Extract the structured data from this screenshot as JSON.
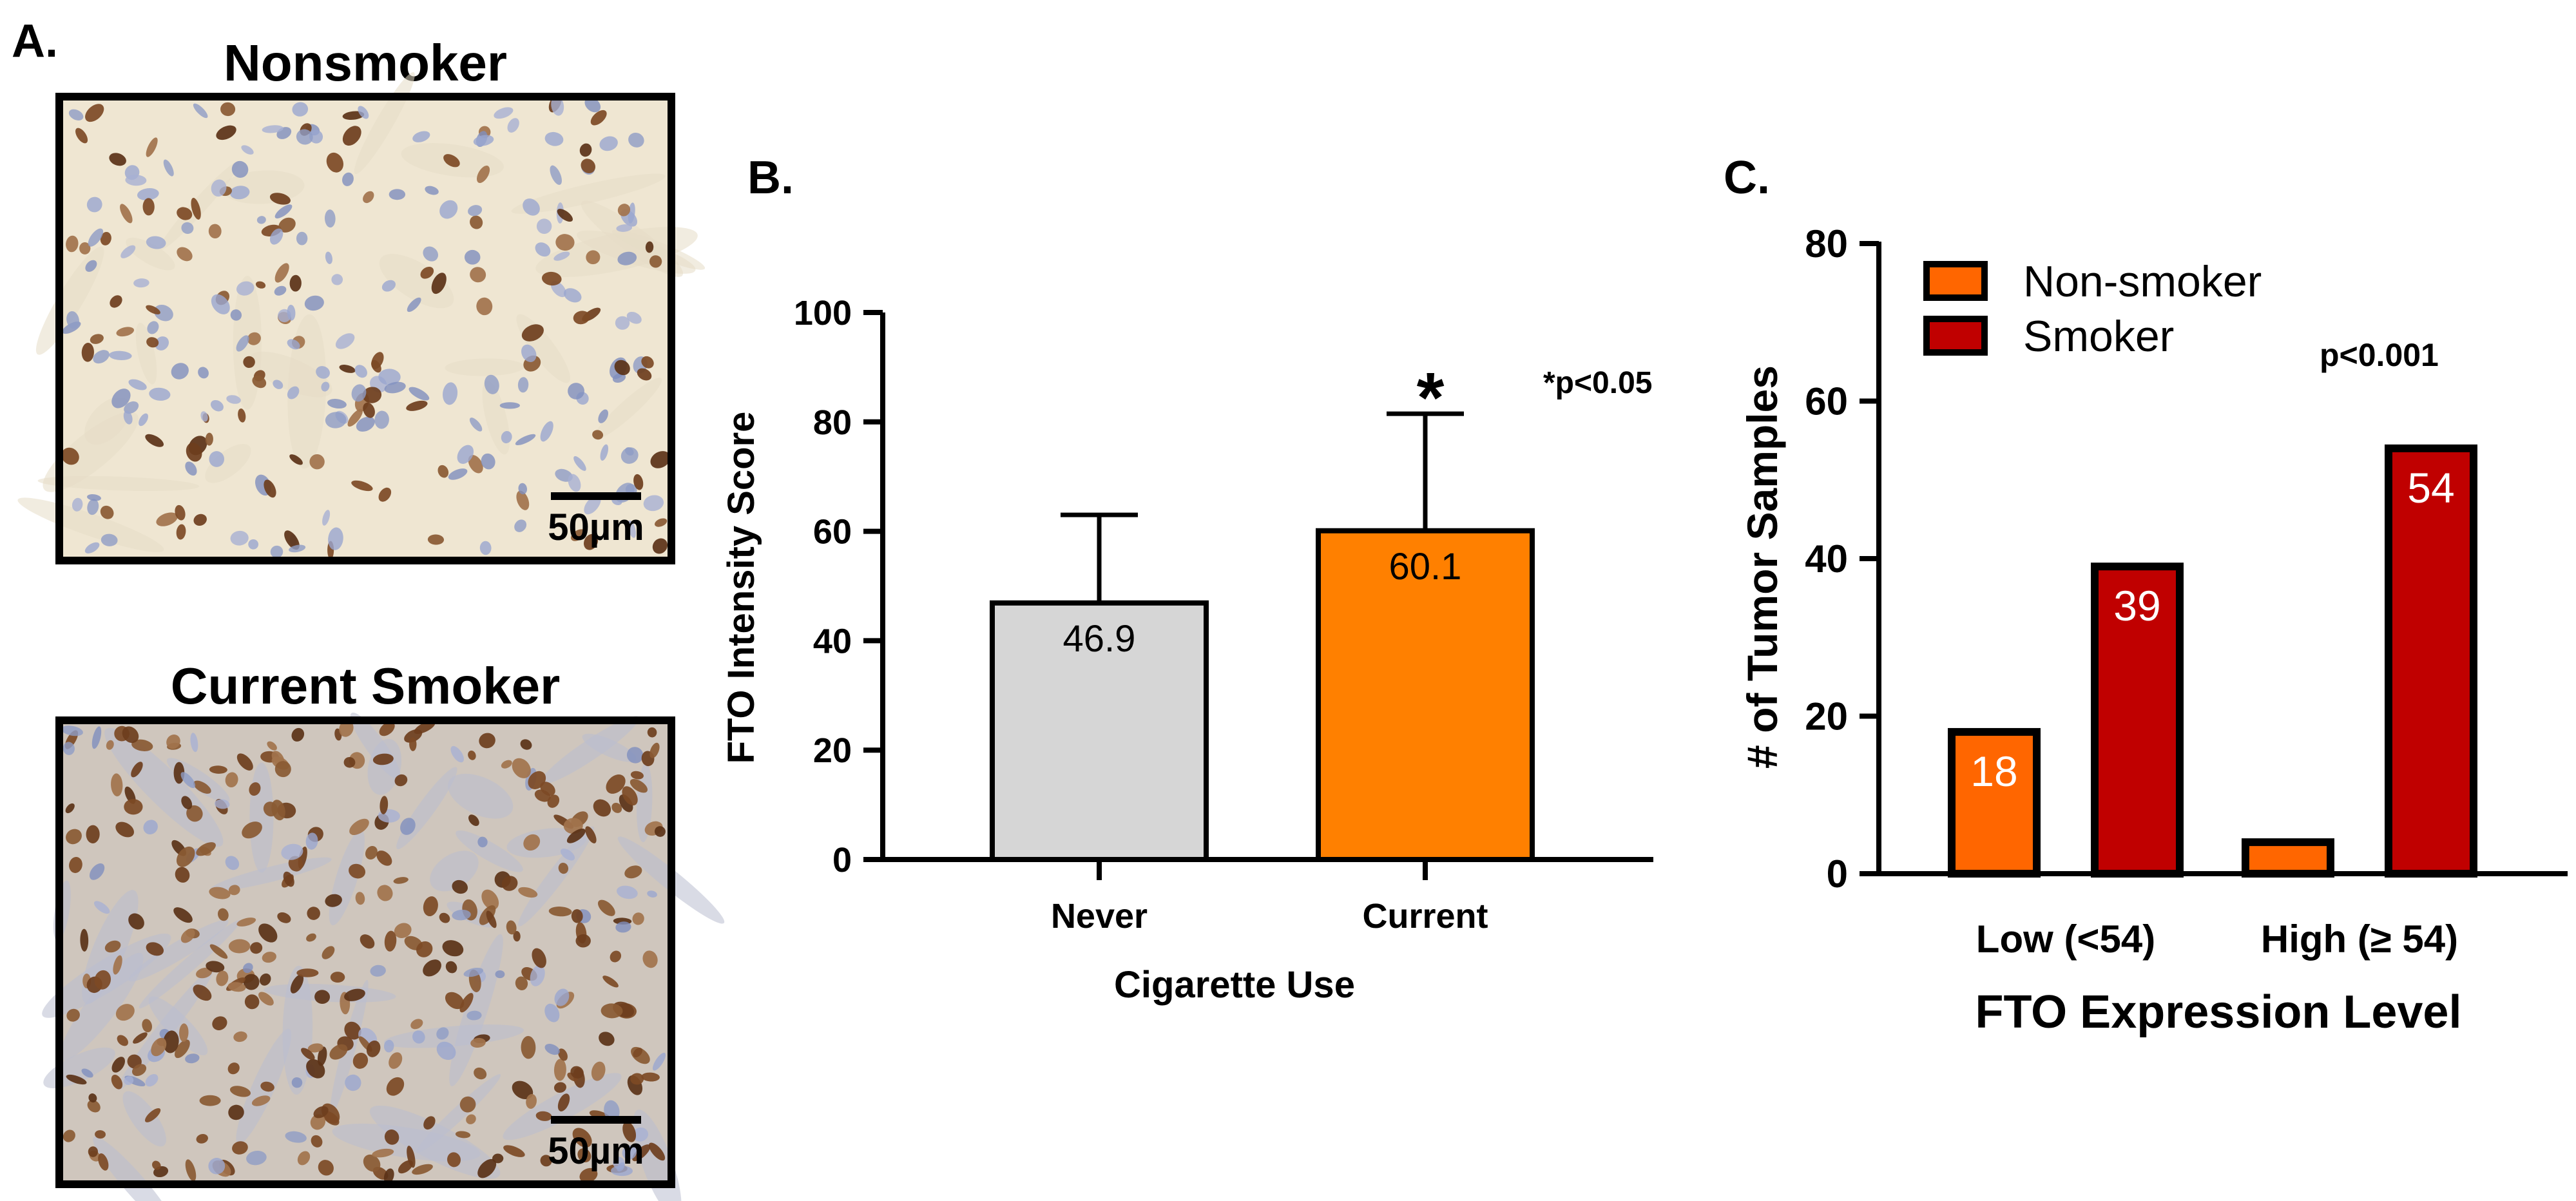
{
  "panel_a": {
    "label": "A.",
    "images": [
      {
        "title": "Nonsmoker",
        "scale_bar_label": "50µm",
        "stain": "light"
      },
      {
        "title": "Current Smoker",
        "scale_bar_label": "50µm",
        "stain": "dark"
      }
    ],
    "colors": {
      "background_light": "#efe6d2",
      "background_dark": "#cfc6bd",
      "nucleus_brown": "#6e3e1d",
      "nucleus_blue": "#8e9cc6"
    }
  },
  "chart_data": [
    {
      "panel_label": "B.",
      "type": "bar",
      "categories": [
        "Never",
        "Current"
      ],
      "values": [
        46.9,
        60.1
      ],
      "value_labels": [
        "46.9",
        "60.1"
      ],
      "error_upper": [
        63.0,
        81.5
      ],
      "colors": [
        "#d6d6d6",
        "#ff8000"
      ],
      "xlabel": "Cigarette Use",
      "ylabel": "FTO Intensity Score",
      "ylim": [
        0,
        100
      ],
      "yticks": [
        0,
        20,
        40,
        60,
        80,
        100
      ],
      "ytick_labels": [
        "0",
        "20",
        "40",
        "60",
        "80",
        "100"
      ],
      "significance_marker": "*",
      "significance_on": "Current",
      "annotation": "*p<0.05",
      "grid": false,
      "legend": "none"
    },
    {
      "panel_label": "C.",
      "type": "bar",
      "categories": [
        "Low (<54)",
        "High (≥ 54)"
      ],
      "series": [
        {
          "name": "Non-smoker",
          "values": [
            18,
            4
          ],
          "value_labels": [
            "18",
            ""
          ],
          "color": "#ff6600"
        },
        {
          "name": "Smoker",
          "values": [
            39,
            54
          ],
          "value_labels": [
            "39",
            "54"
          ],
          "color": "#c00000"
        }
      ],
      "xlabel": "FTO Expression Level",
      "ylabel": "# of Tumor Samples",
      "ylim": [
        0,
        80
      ],
      "yticks": [
        0,
        20,
        40,
        60,
        80
      ],
      "ytick_labels": [
        "0",
        "20",
        "40",
        "60",
        "80"
      ],
      "annotation": "p<0.001",
      "grid": false,
      "legend": "top-left"
    }
  ]
}
